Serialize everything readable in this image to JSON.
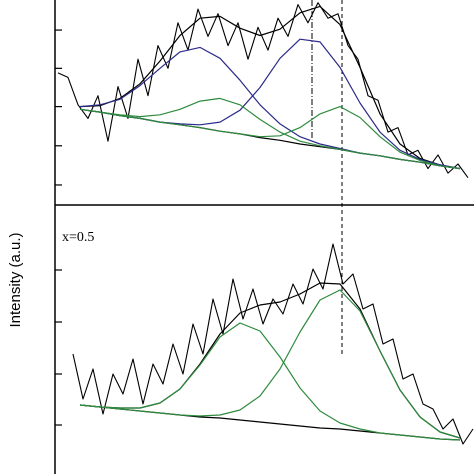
{
  "chart_data": [
    {
      "type": "line",
      "xlim": [
        0,
        419
      ],
      "ylim": [
        0,
        225
      ],
      "yticks": [
        22,
        65,
        108,
        150,
        192
      ],
      "series": [
        {
          "color": "#000000",
          "x": [
            3,
            13,
            23,
            33,
            43,
            53,
            63,
            73,
            83,
            93,
            103,
            113,
            123,
            133,
            143,
            153,
            163,
            173,
            183,
            193,
            203,
            213,
            223,
            233,
            243,
            253,
            263,
            273,
            283,
            293,
            303,
            313,
            323,
            333,
            343,
            353,
            363,
            373,
            383,
            393,
            403,
            413
          ],
          "values": [
            145,
            140,
            110,
            95,
            120,
            70,
            130,
            95,
            160,
            120,
            175,
            150,
            200,
            170,
            215,
            185,
            210,
            175,
            200,
            160,
            195,
            170,
            205,
            185,
            220,
            200,
            222,
            205,
            210,
            175,
            160,
            120,
            115,
            80,
            85,
            55,
            60,
            40,
            55,
            35,
            45,
            30
          ]
        },
        {
          "color": "#000000",
          "x": [
            25,
            45,
            65,
            85,
            105,
            125,
            145,
            165,
            185,
            205,
            225,
            245,
            265,
            285,
            305,
            325,
            345,
            365,
            385,
            405
          ],
          "values": [
            108,
            109,
            117,
            133,
            158,
            186,
            205,
            207,
            194,
            186,
            193,
            211,
            218,
            198,
            151,
            100,
            67,
            51,
            44,
            40
          ]
        },
        {
          "color": "#000000",
          "x": [
            25,
            45,
            65,
            85,
            105,
            125,
            145,
            165,
            185,
            205,
            225,
            245,
            265,
            285,
            305,
            325,
            345,
            365,
            385,
            405
          ],
          "values": [
            105,
            102,
            98,
            95,
            91,
            88,
            85,
            81,
            78,
            74,
            71,
            67,
            64,
            61,
            57,
            54,
            50,
            47,
            43,
            40
          ]
        },
        {
          "color": "#2b2b8a",
          "x": [
            25,
            45,
            65,
            85,
            105,
            125,
            145,
            165,
            185,
            205,
            225,
            245,
            265,
            285,
            305,
            325,
            345,
            365,
            385,
            405
          ],
          "values": [
            108,
            110,
            116,
            131,
            150,
            168,
            173,
            161,
            137,
            110,
            89,
            75,
            67,
            62,
            57,
            54,
            50,
            47,
            43,
            40
          ]
        },
        {
          "color": "#2b2b8a",
          "x": [
            25,
            45,
            65,
            85,
            105,
            125,
            145,
            165,
            185,
            205,
            225,
            245,
            265,
            285,
            305,
            325,
            345,
            365,
            385,
            405
          ],
          "values": [
            105,
            102,
            98,
            95,
            91,
            89,
            88,
            91,
            104,
            129,
            161,
            182,
            179,
            151,
            112,
            80,
            60,
            50,
            44,
            40
          ]
        },
        {
          "color": "#2e8b3e",
          "x": [
            25,
            45,
            65,
            85,
            105,
            125,
            145,
            165,
            185,
            205,
            225,
            245,
            265,
            285,
            305,
            325,
            345,
            365,
            385,
            405
          ],
          "values": [
            105,
            102,
            99,
            97,
            99,
            105,
            114,
            117,
            110,
            94,
            80,
            70,
            65,
            61,
            57,
            54,
            50,
            47,
            43,
            40
          ]
        },
        {
          "color": "#2e8b3e",
          "x": [
            25,
            45,
            65,
            85,
            105,
            125,
            145,
            165,
            185,
            205,
            225,
            245,
            265,
            285,
            305,
            325,
            345,
            365,
            385,
            405
          ],
          "values": [
            105,
            102,
            98,
            95,
            91,
            88,
            85,
            81,
            78,
            75,
            76,
            85,
            100,
            108,
            96,
            75,
            58,
            49,
            43,
            40
          ]
        }
      ]
    },
    {
      "type": "line",
      "annotation": "x=0.5",
      "ylabel": "Intensity (a.u.)",
      "xlim": [
        0,
        419
      ],
      "ylim": [
        0,
        269
      ],
      "yticks": [
        49,
        100,
        152,
        204
      ],
      "series": [
        {
          "color": "#000000",
          "x": [
            18,
            28,
            38,
            48,
            58,
            68,
            78,
            88,
            98,
            108,
            118,
            128,
            138,
            148,
            158,
            168,
            178,
            188,
            198,
            208,
            218,
            228,
            238,
            248,
            258,
            268,
            278,
            288,
            298,
            308,
            318,
            328,
            338,
            348,
            358,
            368,
            378,
            388,
            398,
            408,
            418
          ],
          "values": [
            120,
            75,
            105,
            60,
            100,
            80,
            115,
            70,
            110,
            90,
            130,
            100,
            150,
            120,
            175,
            140,
            195,
            155,
            185,
            150,
            175,
            160,
            190,
            170,
            205,
            185,
            230,
            190,
            200,
            165,
            170,
            130,
            135,
            95,
            100,
            70,
            65,
            45,
            55,
            30,
            45
          ]
        },
        {
          "color": "#000000",
          "x": [
            25,
            45,
            65,
            85,
            105,
            125,
            145,
            165,
            185,
            205,
            225,
            245,
            265,
            285,
            305,
            325,
            345,
            365,
            385,
            405
          ],
          "values": [
            69,
            67,
            66,
            66,
            71,
            85,
            110,
            140,
            161,
            169,
            172,
            180,
            191,
            190,
            165,
            123,
            84,
            57,
            42,
            36
          ]
        },
        {
          "color": "#000000",
          "x": [
            25,
            45,
            65,
            85,
            105,
            125,
            145,
            165,
            185,
            205,
            225,
            245,
            265,
            285,
            305,
            325,
            345,
            365,
            385,
            405
          ],
          "values": [
            69,
            67,
            65,
            63,
            61,
            59,
            57,
            56,
            54,
            52,
            50,
            48,
            46,
            45,
            43,
            41,
            39,
            37,
            35,
            34
          ]
        },
        {
          "color": "#2e8b3e",
          "x": [
            25,
            45,
            65,
            85,
            105,
            125,
            145,
            165,
            185,
            205,
            225,
            245,
            265,
            285,
            305,
            325,
            345,
            365,
            385,
            405
          ],
          "values": [
            69,
            67,
            66,
            66,
            71,
            85,
            109,
            137,
            151,
            143,
            117,
            86,
            63,
            51,
            45,
            41,
            39,
            37,
            35,
            34
          ]
        },
        {
          "color": "#2e8b3e",
          "x": [
            25,
            45,
            65,
            85,
            105,
            125,
            145,
            165,
            185,
            205,
            225,
            245,
            265,
            285,
            305,
            325,
            345,
            365,
            385,
            405
          ],
          "values": [
            69,
            67,
            65,
            63,
            61,
            59,
            58,
            59,
            64,
            78,
            105,
            142,
            174,
            184,
            163,
            123,
            84,
            57,
            42,
            36
          ]
        }
      ]
    }
  ]
}
